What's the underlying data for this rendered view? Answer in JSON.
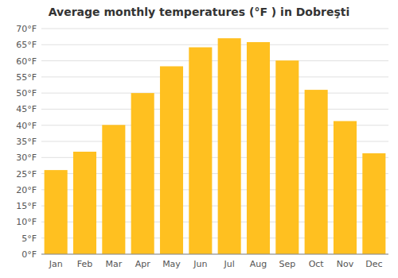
{
  "chart_data": {
    "type": "bar",
    "title": "Average monthly temperatures (°F ) in Dobreşti",
    "categories": [
      "Jan",
      "Feb",
      "Mar",
      "Apr",
      "May",
      "Jun",
      "Jul",
      "Aug",
      "Sep",
      "Oct",
      "Nov",
      "Dec"
    ],
    "values": [
      26.1,
      31.8,
      40.1,
      50.0,
      58.3,
      64.2,
      67.0,
      65.8,
      60.1,
      51.0,
      41.3,
      31.3
    ],
    "color": "#FFC020",
    "ylim": [
      0,
      70
    ],
    "yticks": [
      {
        "value": 0,
        "label": "0°F"
      },
      {
        "value": 5,
        "label": "5°F"
      },
      {
        "value": 10,
        "label": "10°F"
      },
      {
        "value": 15,
        "label": "15°F"
      },
      {
        "value": 20,
        "label": "20°F"
      },
      {
        "value": 25,
        "label": "25°F"
      },
      {
        "value": 30,
        "label": "30°F"
      },
      {
        "value": 35,
        "label": "35°F"
      },
      {
        "value": 40,
        "label": "40°F"
      },
      {
        "value": 45,
        "label": "45°F"
      },
      {
        "value": 50,
        "label": "50°F"
      },
      {
        "value": 55,
        "label": "55°F"
      },
      {
        "value": 60,
        "label": "60°F"
      },
      {
        "value": 65,
        "label": "65°F"
      },
      {
        "value": 70,
        "label": "70°F"
      }
    ],
    "grid": true
  }
}
